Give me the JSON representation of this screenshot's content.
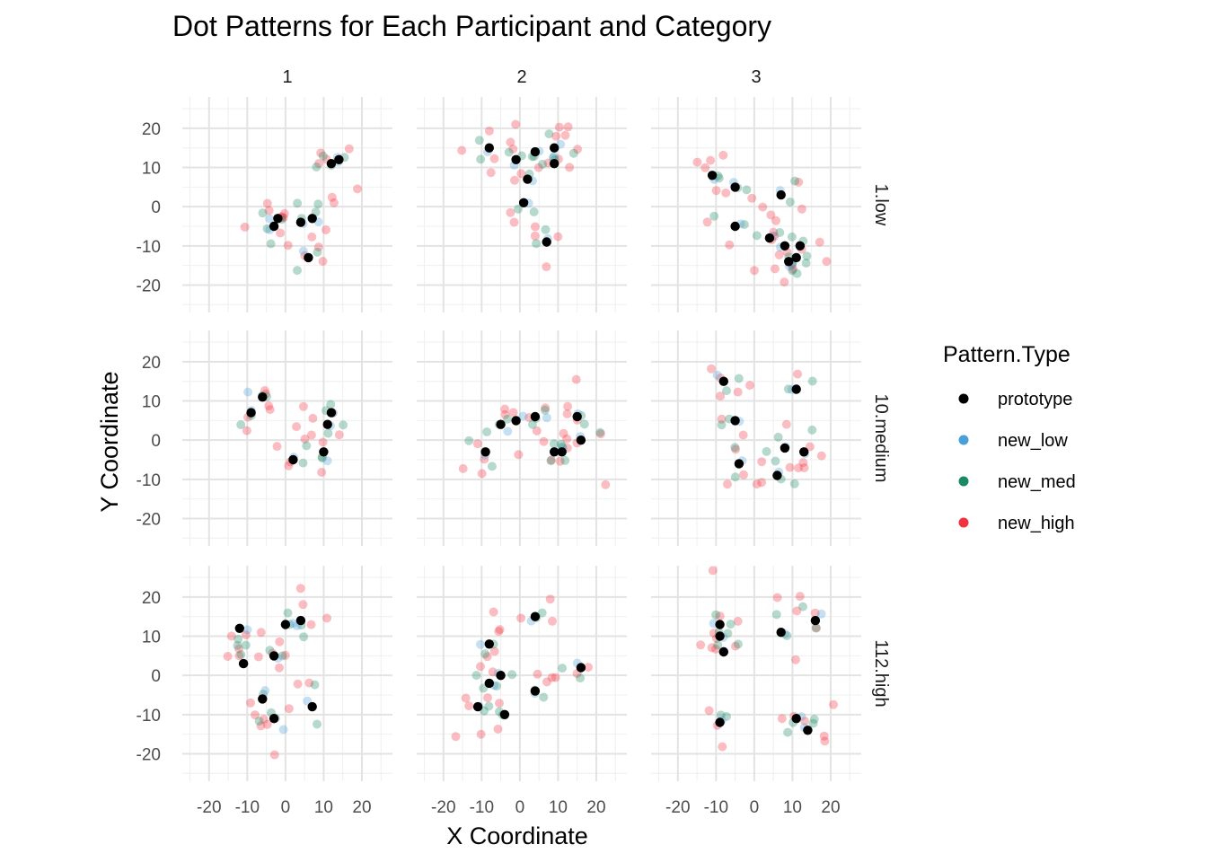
{
  "chart_data": {
    "type": "scatter",
    "title": "Dot Patterns for Each Participant and Category",
    "xlabel": "X Coordinate",
    "ylabel": "Y Coordinate",
    "xlim": [
      -27,
      28
    ],
    "ylim": [
      -27,
      28
    ],
    "x_ticks": [
      -20,
      -10,
      0,
      10,
      20
    ],
    "y_ticks": [
      -20,
      -10,
      0,
      10,
      20
    ],
    "column_labels": [
      "1",
      "2",
      "3"
    ],
    "row_labels": [
      "1.low",
      "10.medium",
      "112.high"
    ],
    "grid": true,
    "legend": {
      "title": "Pattern.Type",
      "position": "right",
      "items": [
        {
          "label": "prototype",
          "color": "#000000"
        },
        {
          "label": "new_low",
          "color": "#4a9fd8"
        },
        {
          "label": "new_med",
          "color": "#1b8a63"
        },
        {
          "label": "new_high",
          "color": "#f2323e"
        }
      ]
    },
    "series_colors": {
      "prototype": "#000000",
      "new_low": "#4a9fd8",
      "new_med": "#1b8a63",
      "new_high": "#f2323e"
    },
    "facets": [
      {
        "row": "1.low",
        "col": "1",
        "prototype": [
          [
            -3,
            -5
          ],
          [
            -2,
            -3
          ],
          [
            4,
            -4
          ],
          [
            6,
            -13
          ],
          [
            7,
            -3
          ],
          [
            12,
            11
          ],
          [
            14,
            12
          ]
        ]
      },
      {
        "row": "1.low",
        "col": "2",
        "prototype": [
          [
            -8,
            15
          ],
          [
            -1,
            12
          ],
          [
            1,
            1
          ],
          [
            2,
            7
          ],
          [
            4,
            14
          ],
          [
            7,
            -9
          ],
          [
            9,
            15
          ],
          [
            9,
            11
          ]
        ]
      },
      {
        "row": "1.low",
        "col": "3",
        "prototype": [
          [
            -11,
            8
          ],
          [
            -5,
            5
          ],
          [
            -5,
            -5
          ],
          [
            4,
            -8
          ],
          [
            7,
            3
          ],
          [
            8,
            -10
          ],
          [
            9,
            -14
          ],
          [
            11,
            -13
          ],
          [
            12,
            -10
          ]
        ]
      },
      {
        "row": "10.medium",
        "col": "1",
        "prototype": [
          [
            -9,
            7
          ],
          [
            -6,
            11
          ],
          [
            2,
            -5
          ],
          [
            10,
            -3
          ],
          [
            11,
            4
          ],
          [
            12,
            7
          ]
        ]
      },
      {
        "row": "10.medium",
        "col": "2",
        "prototype": [
          [
            -9,
            -3
          ],
          [
            -5,
            4
          ],
          [
            -1,
            5
          ],
          [
            4,
            6
          ],
          [
            9,
            -3
          ],
          [
            11,
            -3
          ],
          [
            15,
            6
          ],
          [
            16,
            0
          ]
        ]
      },
      {
        "row": "10.medium",
        "col": "3",
        "prototype": [
          [
            -8,
            15
          ],
          [
            -5,
            5
          ],
          [
            -4,
            -6
          ],
          [
            6,
            -9
          ],
          [
            8,
            -2
          ],
          [
            11,
            13
          ],
          [
            13,
            -3
          ]
        ]
      },
      {
        "row": "112.high",
        "col": "1",
        "prototype": [
          [
            -12,
            12
          ],
          [
            -11,
            3
          ],
          [
            -6,
            -6
          ],
          [
            -3,
            5
          ],
          [
            -3,
            -11
          ],
          [
            0,
            13
          ],
          [
            4,
            14
          ],
          [
            7,
            -8
          ]
        ]
      },
      {
        "row": "112.high",
        "col": "2",
        "prototype": [
          [
            -11,
            -8
          ],
          [
            -8,
            8
          ],
          [
            -8,
            -2
          ],
          [
            -5,
            0
          ],
          [
            -4,
            -10
          ],
          [
            4,
            15
          ],
          [
            4,
            -4
          ],
          [
            16,
            2
          ]
        ]
      },
      {
        "row": "112.high",
        "col": "3",
        "prototype": [
          [
            -9,
            13
          ],
          [
            -9,
            10
          ],
          [
            -8,
            6
          ],
          [
            -9,
            -12
          ],
          [
            7,
            11
          ],
          [
            11,
            -11
          ],
          [
            14,
            -14
          ],
          [
            16,
            14
          ]
        ]
      }
    ]
  }
}
